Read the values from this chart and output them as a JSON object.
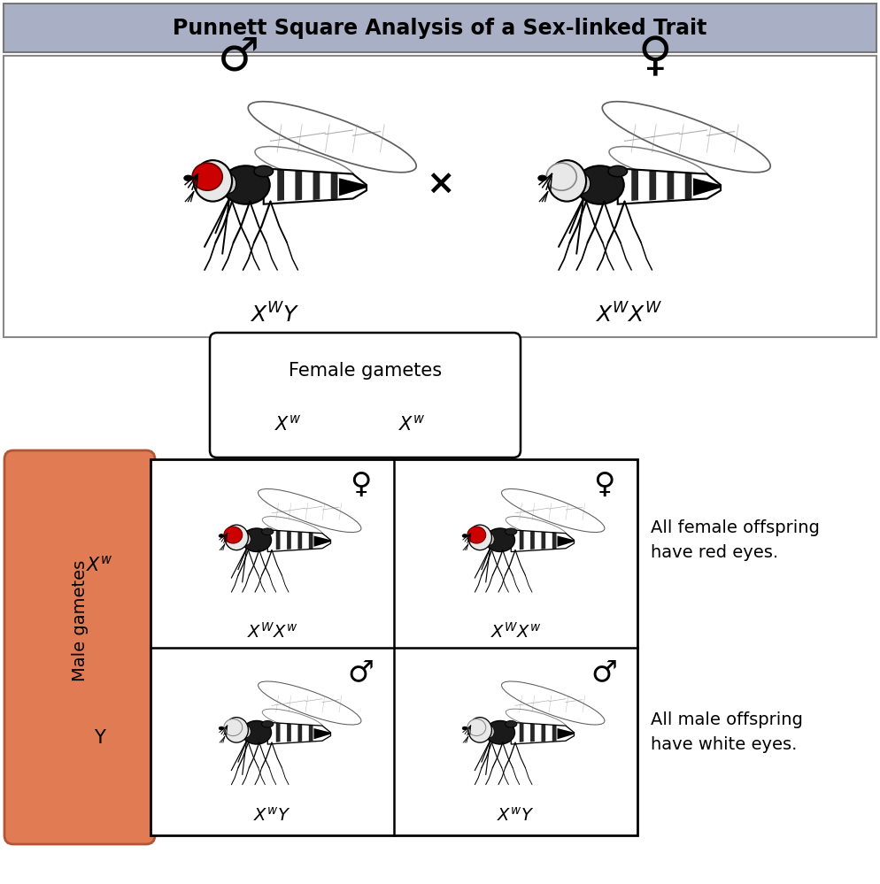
{
  "title": "Punnett Square Analysis of a Sex-linked Trait",
  "title_bg_color": "#a9b0c5",
  "title_fontsize": 17,
  "female_gametes_label": "Female gametes",
  "male_gametes_label": "Male gametes",
  "male_gametes_bg": "#e07b54",
  "female_offspring_text": "All female offspring\nhave red eyes.",
  "male_offspring_text": "All male offspring\nhave white eyes.",
  "red_eye_color": "#cc0000",
  "cross_symbol": "×",
  "male_symbol": "♂",
  "female_symbol": "♀",
  "border_color": "#888888"
}
